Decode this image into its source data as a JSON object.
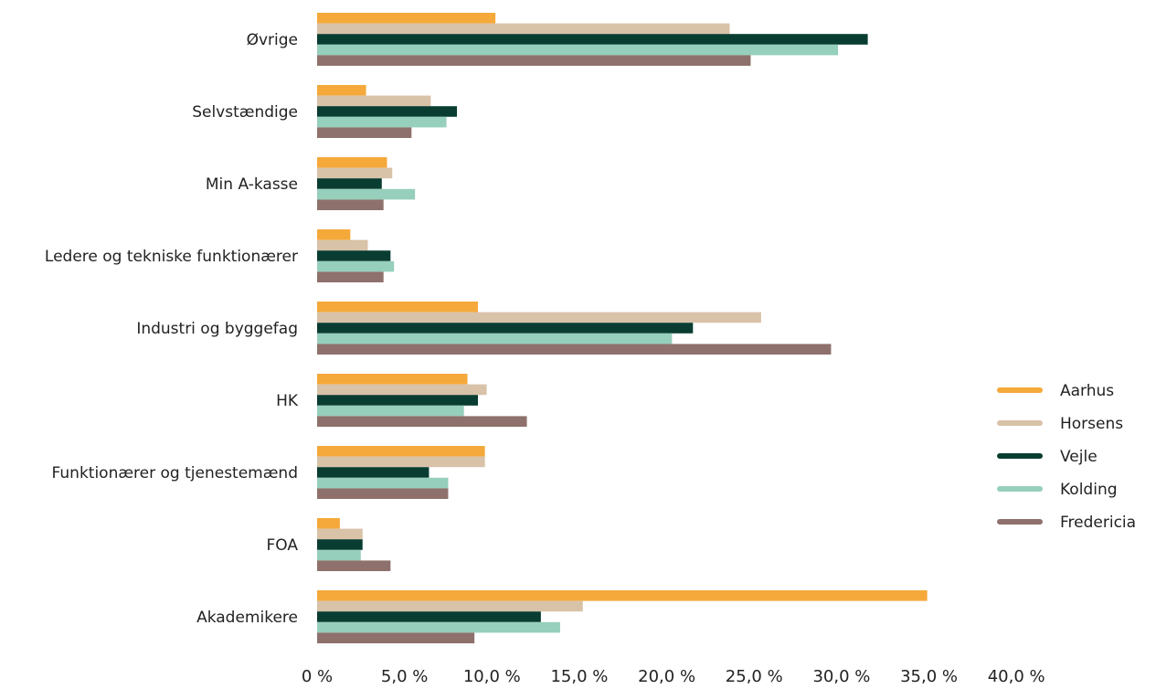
{
  "chart_data": {
    "type": "bar",
    "orientation": "horizontal",
    "title": "",
    "xlabel": "",
    "ylabel": "",
    "categories": [
      "Øvrige",
      "Selvstændige",
      "Min A-kasse",
      "Ledere og tekniske funktionærer",
      "Industri og byggefag",
      "HK",
      "Funktionærer og tjenestemænd",
      "FOA",
      "Akademikere"
    ],
    "series": [
      {
        "name": "Aarhus",
        "color": "#F5A93A",
        "values": [
          10.2,
          2.8,
          4.0,
          1.9,
          9.2,
          8.6,
          9.6,
          1.3,
          34.9
        ]
      },
      {
        "name": "Horsens",
        "color": "#D8C2A8",
        "values": [
          23.6,
          6.5,
          4.3,
          2.9,
          25.4,
          9.7,
          9.6,
          2.6,
          15.2
        ]
      },
      {
        "name": "Vejle",
        "color": "#0A3D32",
        "values": [
          31.5,
          8.0,
          3.7,
          4.2,
          21.5,
          9.2,
          6.4,
          2.6,
          12.8
        ]
      },
      {
        "name": "Kolding",
        "color": "#96CFBB",
        "values": [
          29.8,
          7.4,
          5.6,
          4.4,
          20.3,
          8.4,
          7.5,
          2.5,
          13.9
        ]
      },
      {
        "name": "Fredericia",
        "color": "#8E716C",
        "values": [
          24.8,
          5.4,
          3.8,
          3.8,
          29.4,
          12.0,
          7.5,
          4.2,
          9.0
        ]
      }
    ],
    "xlim": [
      0,
      40
    ],
    "xticks": [
      "0 %",
      "5,0 %",
      "10,0 %",
      "15,0 %",
      "20,0 %",
      "25,0 %",
      "30,0 %",
      "35,0 %",
      "40,0 %"
    ],
    "grid": false,
    "legend_position": "right"
  }
}
